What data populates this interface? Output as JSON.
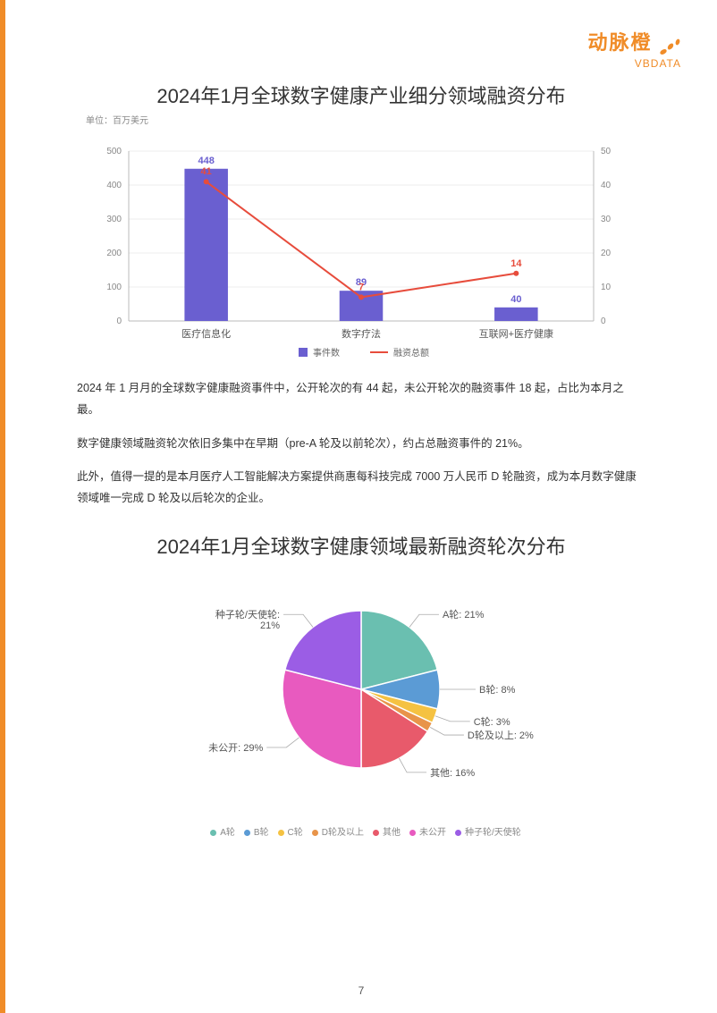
{
  "logo": {
    "cn": "动脉橙",
    "en": "VBDATA"
  },
  "bar_chart": {
    "type": "bar+line",
    "title": "2024年1月全球数字健康产业细分领域融资分布",
    "subtitle": "单位：百万美元",
    "categories": [
      "医疗信息化",
      "数字疗法",
      "互联网+医疗健康"
    ],
    "bar_values": [
      448,
      89,
      40
    ],
    "line_values": [
      41,
      7,
      14
    ],
    "bar_color": "#6a5fd0",
    "line_color": "#e74c3c",
    "left_axis": {
      "min": 0,
      "max": 500,
      "step": 100
    },
    "right_axis": {
      "min": 0,
      "max": 50,
      "step": 10
    },
    "background": "#ffffff",
    "grid_color": "#d9d9d9",
    "legend": {
      "bar": "事件数",
      "line": "融资总额"
    },
    "bar_width": 0.28
  },
  "paragraphs": {
    "p1": "2024 年 1 月月的全球数字健康融资事件中，公开轮次的有 44 起，未公开轮次的融资事件 18 起，占比为本月之最。",
    "p2": "数字健康领域融资轮次依旧多集中在早期（pre-A 轮及以前轮次），约占总融资事件的 21%。",
    "p3": "此外，值得一提的是本月医疗人工智能解决方案提供商惠每科技完成 7000 万人民币 D 轮融资，成为本月数字健康领域唯一完成 D 轮及以后轮次的企业。"
  },
  "pie_chart": {
    "type": "pie",
    "title": "2024年1月全球数字健康领域最新融资轮次分布",
    "slices": [
      {
        "label": "A轮",
        "pct": 21,
        "color": "#6abfb0",
        "text": "A轮: 21%"
      },
      {
        "label": "B轮",
        "pct": 8,
        "color": "#5b9bd5",
        "text": "B轮: 8%"
      },
      {
        "label": "C轮",
        "pct": 3,
        "color": "#f5c242",
        "text": "C轮: 3%"
      },
      {
        "label": "D轮及以上",
        "pct": 2,
        "color": "#e8944a",
        "text": "D轮及以上: 2%"
      },
      {
        "label": "其他",
        "pct": 16,
        "color": "#e85a6b",
        "text": "其他: 16%"
      },
      {
        "label": "未公开",
        "pct": 29,
        "color": "#e85abf",
        "text": "未公开: 29%"
      },
      {
        "label": "种子轮/天使轮",
        "pct": 21,
        "color": "#9b5de5",
        "text": "种子轮/天使轮:\n21%"
      }
    ],
    "start_angle_deg": -90,
    "legend_order": [
      "A轮",
      "B轮",
      "C轮",
      "D轮及以上",
      "其他",
      "未公开",
      "种子轮/天使轮"
    ]
  },
  "page_number": "7"
}
